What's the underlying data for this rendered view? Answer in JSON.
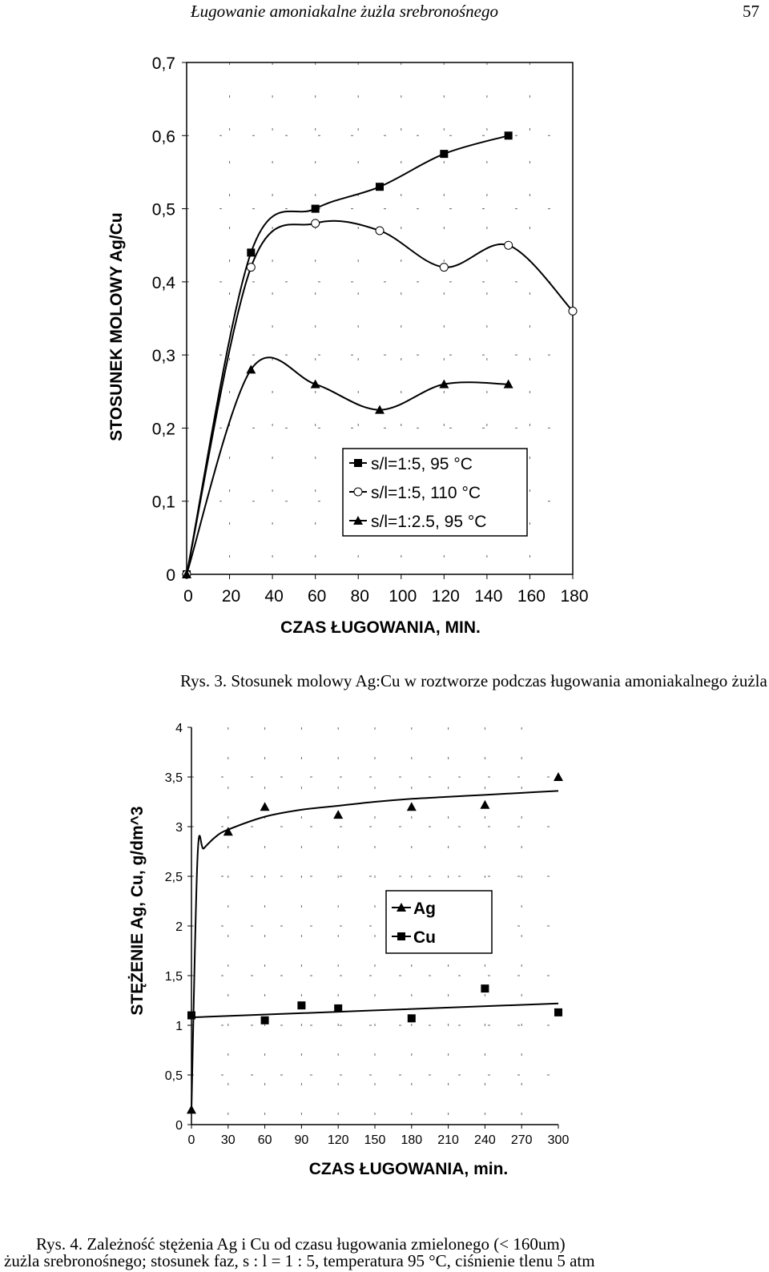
{
  "header": {
    "running_title": "Ługowanie amoniakalne żużla srebronośnego",
    "page_number": "57"
  },
  "figure1": {
    "caption": "Rys. 3. Stosunek molowy Ag:Cu w roztworze podczas ługowania amoniakalnego żużla"
  },
  "figure2": {
    "caption_line1": "Rys. 4. Zależność stężenia Ag i Cu od czasu ługowania zmielonego (< 160um)",
    "caption_line2": "żużla srebronośnego; stosunek faz, s : l = 1 : 5, temperatura  95 °C, ciśnienie tlenu 5 atm"
  },
  "chart_data": [
    {
      "type": "line",
      "title": "",
      "xlabel": "CZAS ŁUGOWANIA,  MIN.",
      "ylabel": "STOSUNEK  MOLOWY Ag/Cu",
      "xlim": [
        0,
        180
      ],
      "ylim": [
        0,
        0.7
      ],
      "x_ticks": [
        "0",
        "20",
        "40",
        "60",
        "80",
        "100",
        "120",
        "140",
        "160",
        "180"
      ],
      "x_tick_values": [
        0,
        20,
        40,
        60,
        80,
        100,
        120,
        140,
        160,
        180
      ],
      "y_ticks": [
        "0",
        "0,1",
        "0,2",
        "0,3",
        "0,4",
        "0,5",
        "0,6",
        "0,7"
      ],
      "y_tick_values": [
        0,
        0.1,
        0.2,
        0.3,
        0.4,
        0.5,
        0.6,
        0.7
      ],
      "grid": "dashed",
      "legend_position": "bottom-right",
      "series": [
        {
          "name": "s/l=1:5, 95 C",
          "marker": "square",
          "x": [
            0,
            30,
            60,
            90,
            120,
            150
          ],
          "y": [
            0,
            0.44,
            0.5,
            0.53,
            0.575,
            0.6
          ]
        },
        {
          "name": "s/l=1:5, 110 C",
          "marker": "circle",
          "x": [
            0,
            30,
            60,
            90,
            120,
            150,
            180
          ],
          "y": [
            0,
            0.42,
            0.48,
            0.47,
            0.42,
            0.45,
            0.36
          ]
        },
        {
          "name": "s/l=1:2.5, 95 C",
          "marker": "triangle",
          "x": [
            0,
            30,
            60,
            90,
            120,
            150
          ],
          "y": [
            0,
            0.28,
            0.26,
            0.225,
            0.26,
            0.26
          ]
        }
      ]
    },
    {
      "type": "scatter",
      "title": "",
      "xlabel": "CZAS ŁUGOWANIA, min.",
      "ylabel": "STĘŻENIE Ag, Cu,  g/dm^3",
      "xlim": [
        0,
        300
      ],
      "ylim": [
        0,
        4
      ],
      "x_ticks": [
        "0",
        "30",
        "60",
        "90",
        "120",
        "150",
        "180",
        "210",
        "240",
        "270",
        "300"
      ],
      "x_tick_values": [
        0,
        30,
        60,
        90,
        120,
        150,
        180,
        210,
        240,
        270,
        300
      ],
      "y_ticks": [
        "0",
        "0,5",
        "1",
        "1,5",
        "2",
        "2,5",
        "3",
        "3,5",
        "4"
      ],
      "y_tick_values": [
        0,
        0.5,
        1,
        1.5,
        2,
        2.5,
        3,
        3.5,
        4
      ],
      "grid": "dashed",
      "legend_position": "center-right",
      "series": [
        {
          "name": "Ag",
          "marker": "triangle",
          "x": [
            0,
            30,
            60,
            120,
            180,
            240,
            300
          ],
          "y": [
            0.15,
            2.95,
            3.2,
            3.12,
            3.2,
            3.22,
            3.5
          ]
        },
        {
          "name": "Cu",
          "marker": "square",
          "x": [
            0,
            60,
            90,
            120,
            180,
            240,
            300
          ],
          "y": [
            1.1,
            1.05,
            1.2,
            1.17,
            1.07,
            1.37,
            1.13
          ]
        }
      ],
      "trendlines": [
        {
          "series": "Ag",
          "x": [
            0,
            5,
            10,
            20,
            30,
            60,
            90,
            120,
            150,
            180,
            210,
            240,
            270,
            300
          ],
          "y": [
            0.15,
            2.7,
            2.78,
            2.9,
            2.97,
            3.1,
            3.17,
            3.21,
            3.25,
            3.28,
            3.3,
            3.32,
            3.34,
            3.36
          ]
        },
        {
          "series": "Cu",
          "x": [
            0,
            300
          ],
          "y": [
            1.08,
            1.22
          ]
        }
      ]
    }
  ]
}
